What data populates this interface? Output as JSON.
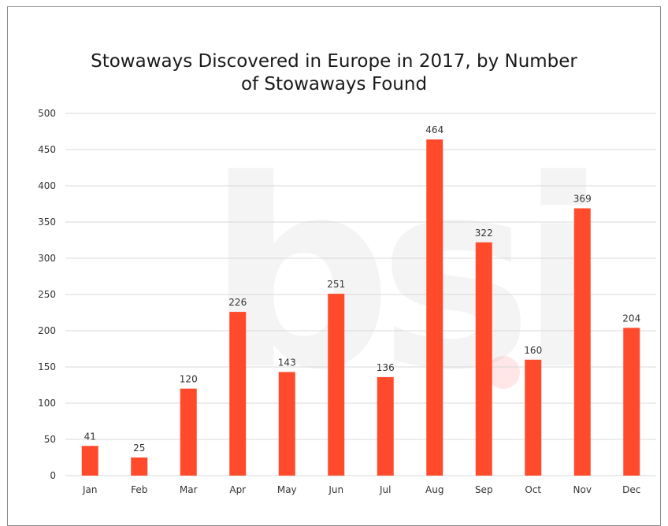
{
  "chart_data": {
    "type": "bar",
    "title_lines": [
      "Stowaways Discovered in Europe in 2017, by Number",
      "of Stowaways Found"
    ],
    "categories": [
      "Jan",
      "Feb",
      "Mar",
      "Apr",
      "May",
      "Jun",
      "Jul",
      "Aug",
      "Sep",
      "Oct",
      "Nov",
      "Dec"
    ],
    "values": [
      41,
      25,
      120,
      226,
      143,
      251,
      136,
      464,
      322,
      160,
      369,
      204
    ],
    "yticks": [
      0,
      50,
      100,
      150,
      200,
      250,
      300,
      350,
      400,
      450,
      500
    ],
    "ylim": [
      0,
      500
    ],
    "grid": "horizontal",
    "legend": "none",
    "data_labels": true,
    "bar_color": "#ff4a2b",
    "grid_color": "#d9d9d9"
  },
  "watermark": {
    "text": "bsi",
    "dot_color": "#ff3c3c"
  }
}
